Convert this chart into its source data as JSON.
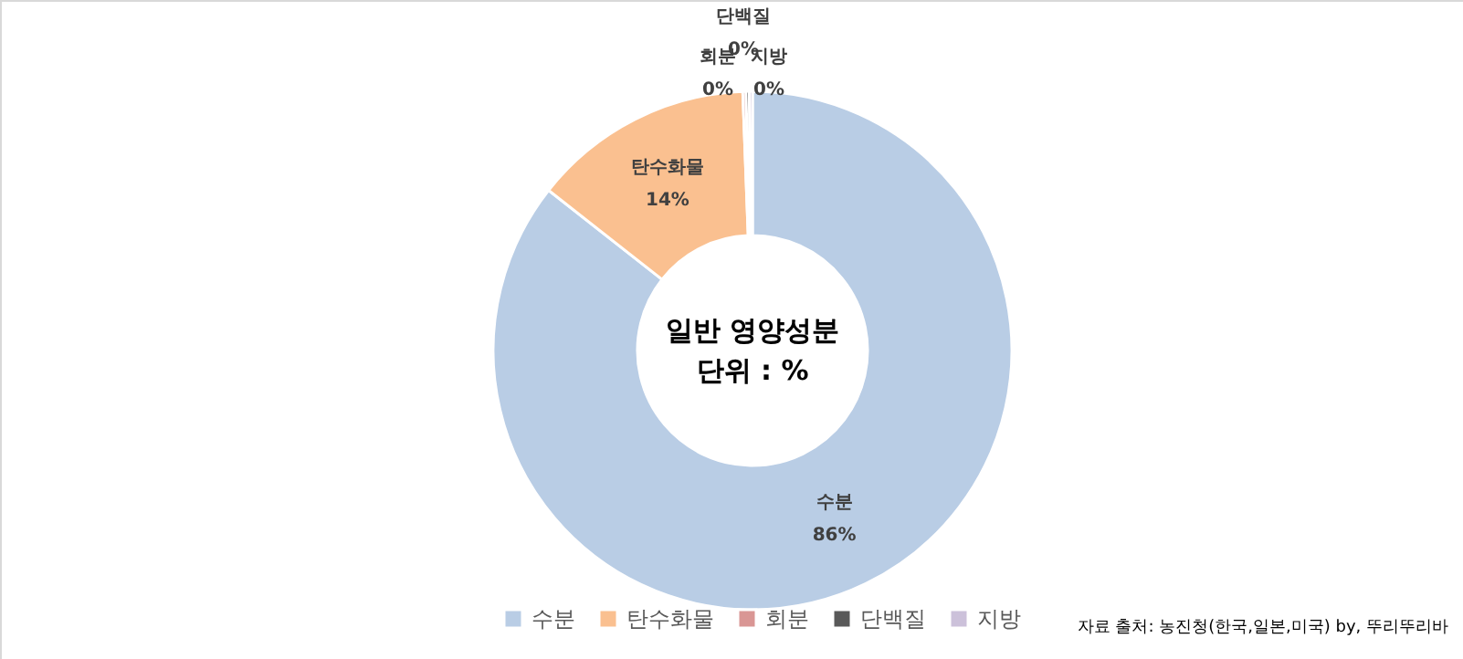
{
  "chart_data": {
    "type": "donut",
    "title": "일반 영양성분",
    "subtitle": "단위 : %",
    "categories": [
      "수분",
      "탄수화물",
      "회분",
      "단백질",
      "지방"
    ],
    "values": [
      85.6,
      13.8,
      0.2,
      0.2,
      0.2
    ],
    "value_labels": [
      "86%",
      "14%",
      "0%",
      "0%",
      "0%"
    ],
    "colors": [
      "#b9cde5",
      "#fac090",
      "#d99694",
      "#595959",
      "#ccc1da"
    ],
    "legend": "bottom",
    "annotations": [
      "자료 출처: 농진청(한국,일본,미국) by, 뚜리뚜리바"
    ]
  }
}
